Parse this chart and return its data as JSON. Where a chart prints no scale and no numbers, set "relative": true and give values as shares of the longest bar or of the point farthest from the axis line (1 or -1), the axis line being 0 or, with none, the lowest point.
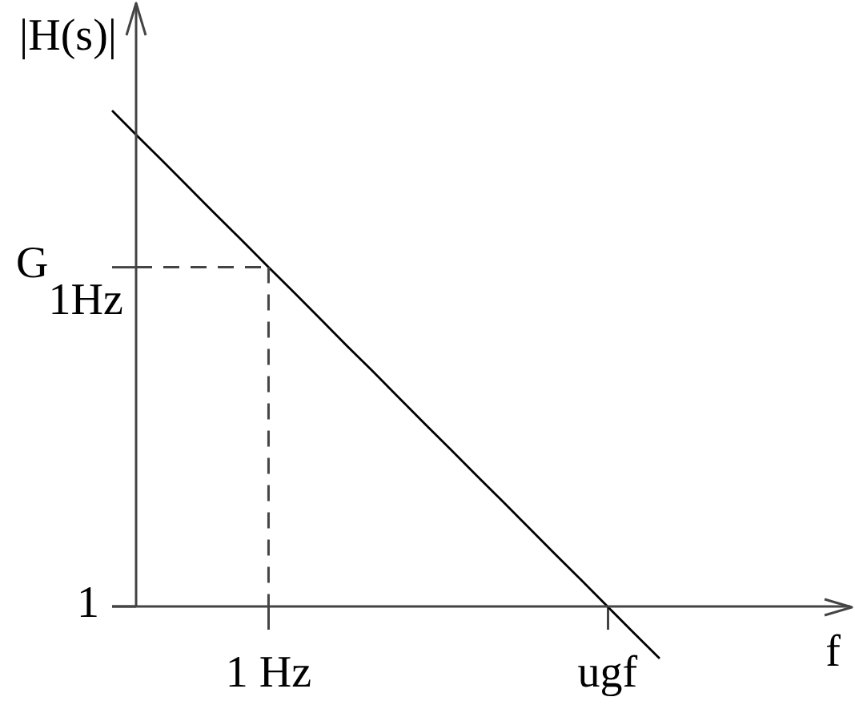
{
  "chart_data": {
    "type": "line",
    "xlabel": "f",
    "ylabel": "|H(s)|",
    "relative": true,
    "marker": "none",
    "categories": [
      null,
      null,
      null,
      null,
      null,
      null,
      "1 Hz",
      null,
      null,
      null,
      null,
      null,
      null,
      null,
      null,
      null,
      null,
      null,
      null,
      "ugf",
      null,
      null
    ],
    "values": [
      1,
      0.947,
      0.895,
      0.842,
      0.789,
      0.737,
      0.684,
      0.632,
      0.579,
      0.526,
      0.474,
      0.421,
      0.368,
      0.316,
      0.263,
      0.211,
      0.158,
      0.105,
      0.053,
      0,
      -0.053,
      -0.105
    ],
    "color": "#000000",
    "ref_lines": [
      {
        "axis": "y",
        "value": 0.684,
        "label": "G$_{1Hz}$",
        "line_style": "dashed",
        "color": "#444444"
      },
      {
        "axis": "x",
        "value": "1 Hz",
        "line_style": "dashed",
        "color": "#444444"
      }
    ],
    "annotations": [
      "1"
    ]
  }
}
